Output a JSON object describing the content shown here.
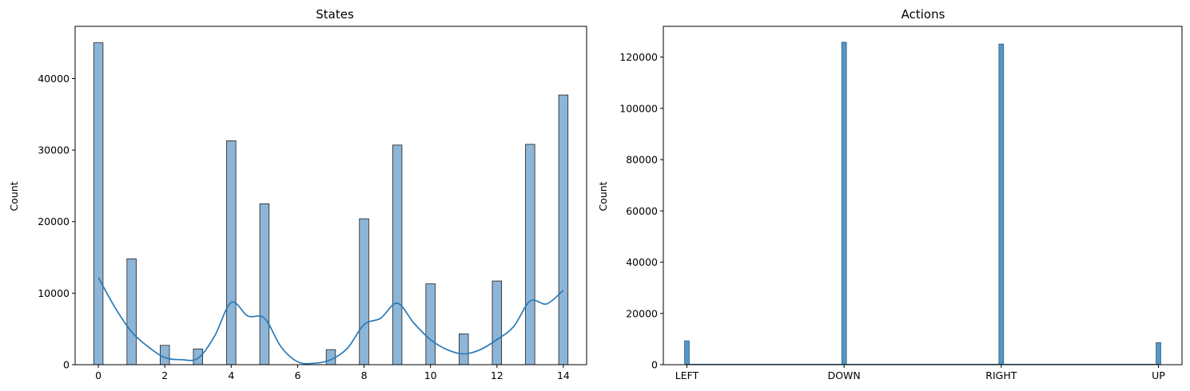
{
  "colors": {
    "states_bar_fill": "#8db5d7",
    "states_bar_edge": "#1f1f1f",
    "kde_line": "#2a7ab7",
    "actions_bar_fill": "#5596c3",
    "actions_bar_edge": "#2a5f86"
  },
  "chart_data": [
    {
      "type": "bar",
      "title": "States",
      "xlabel": "",
      "ylabel": "Count",
      "xlim": [
        -0.7,
        14.7
      ],
      "ylim": [
        0,
        47300
      ],
      "x_ticks": [
        0,
        2,
        4,
        6,
        8,
        10,
        12,
        14
      ],
      "y_ticks": [
        0,
        10000,
        20000,
        30000,
        40000
      ],
      "bar_width": 0.28,
      "x": [
        0,
        1,
        2,
        3,
        4,
        5,
        7,
        8,
        9,
        10,
        11,
        12,
        13,
        14
      ],
      "values": [
        45000,
        14800,
        2700,
        2200,
        31300,
        22500,
        2100,
        20400,
        30700,
        11300,
        4300,
        11700,
        30800,
        37700
      ],
      "kde": {
        "x": [
          0,
          0.5,
          1,
          1.5,
          2,
          2.5,
          3,
          3.5,
          4,
          4.5,
          5,
          5.5,
          6,
          6.5,
          7,
          7.5,
          8,
          8.5,
          9,
          9.5,
          10,
          10.5,
          11,
          11.5,
          12,
          12.5,
          13,
          13.5,
          14
        ],
        "y": [
          12200,
          8000,
          4600,
          2500,
          1000,
          700,
          900,
          4000,
          8700,
          6800,
          6500,
          2500,
          400,
          200,
          700,
          2300,
          5600,
          6500,
          8600,
          5800,
          3500,
          2100,
          1500,
          2100,
          3500,
          5300,
          8900,
          8500,
          10400
        ]
      },
      "grid": false
    },
    {
      "type": "bar",
      "title": "Actions",
      "xlabel": "",
      "ylabel": "Count",
      "categories": [
        "LEFT",
        "DOWN",
        "RIGHT",
        "UP"
      ],
      "values": [
        9300,
        125800,
        125100,
        8600
      ],
      "xlim": [
        -0.15,
        3.15
      ],
      "ylim": [
        0,
        132000
      ],
      "y_ticks": [
        0,
        20000,
        40000,
        60000,
        80000,
        100000,
        120000
      ],
      "bar_width": 0.03,
      "grid": false
    }
  ]
}
